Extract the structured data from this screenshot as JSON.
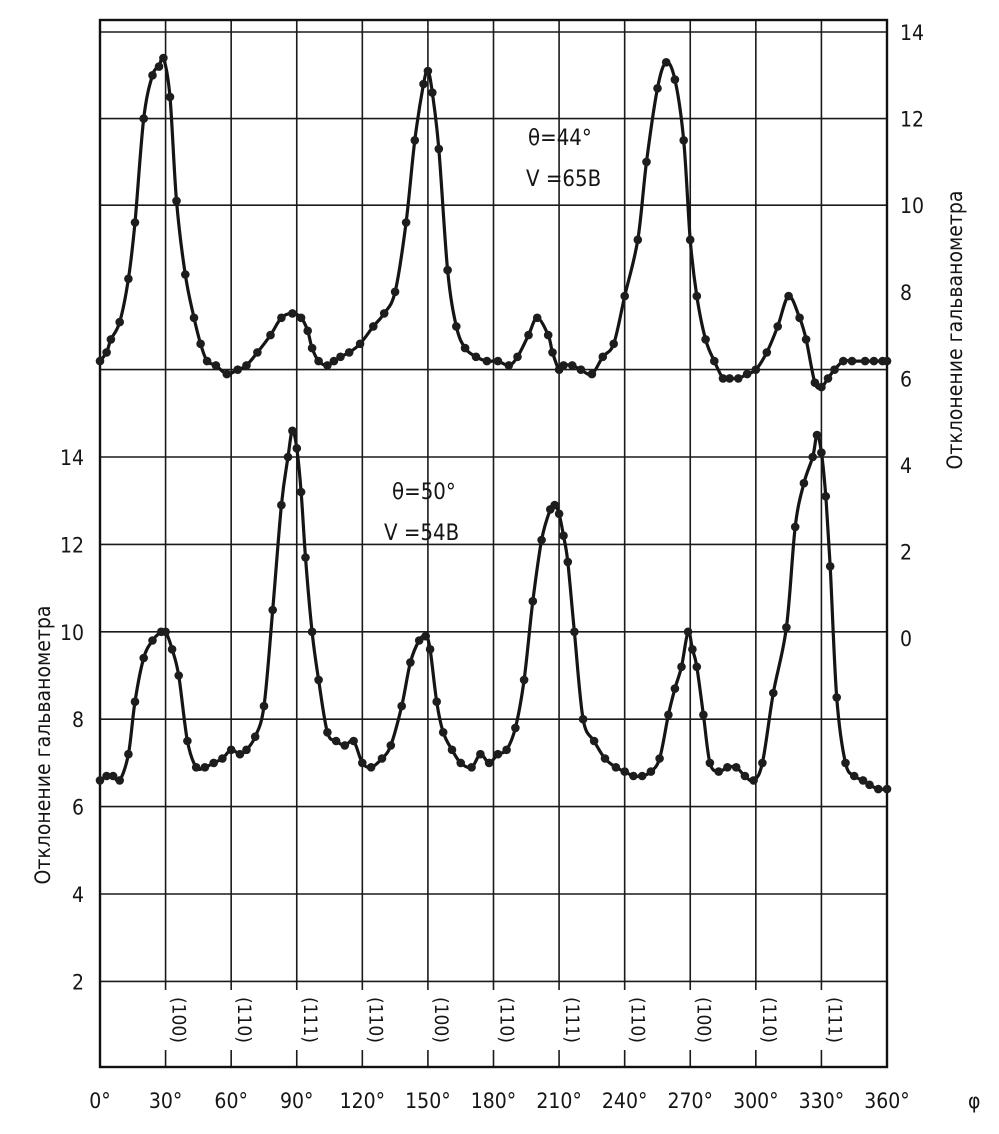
{
  "chart_data": {
    "type": "line",
    "x_label": "φ",
    "x_ticks": [
      "0°",
      "30°",
      "60°",
      "90°",
      "120°",
      "150°",
      "180°",
      "210°",
      "240°",
      "270°",
      "300°",
      "330°",
      "360°"
    ],
    "xlim": [
      0,
      360
    ],
    "left_axis": {
      "label": "Отклонение гальванометра",
      "ticks": [
        "2",
        "4",
        "6",
        "8",
        "10",
        "12",
        "14"
      ],
      "ylim": [
        0,
        16
      ]
    },
    "right_axis": {
      "label": "Отклонение гальванометра",
      "ticks": [
        "0",
        "2",
        "4",
        "6",
        "8",
        "10",
        "12",
        "14"
      ],
      "ylim": [
        -2,
        14
      ]
    },
    "grid": true,
    "plane_labels": [
      "(100)",
      "(110)",
      "(111)",
      "(110)",
      "(100)",
      "(110)",
      "(111)",
      "(110)",
      "(100)",
      "(110)",
      "(111)"
    ],
    "series": [
      {
        "annotation": [
          "θ=44°",
          "V =65B"
        ],
        "axis": "right",
        "x": [
          0,
          3,
          5,
          9,
          13,
          16,
          20,
          24,
          27,
          29,
          32,
          35,
          39,
          43,
          46,
          49,
          53,
          58,
          63,
          67,
          72,
          78,
          83,
          88,
          92,
          95,
          97,
          100,
          104,
          107,
          110,
          114,
          119,
          125,
          130,
          135,
          140,
          144,
          148,
          150,
          152,
          155,
          159,
          163,
          167,
          172,
          177,
          182,
          187,
          191,
          196,
          200,
          205,
          207,
          210,
          212,
          216,
          220,
          225,
          230,
          235,
          240,
          246,
          250,
          255,
          259,
          263,
          267,
          270,
          273,
          277,
          281,
          285,
          288,
          292,
          296,
          300,
          305,
          310,
          315,
          320,
          323,
          327,
          330,
          333,
          336,
          340,
          344,
          350,
          354,
          358,
          360
        ],
        "y": [
          6.4,
          6.6,
          6.9,
          7.3,
          8.3,
          9.6,
          12,
          13,
          13.2,
          13.4,
          12.5,
          10.1,
          8.4,
          7.4,
          6.8,
          6.4,
          6.3,
          6.1,
          6.2,
          6.3,
          6.6,
          7.0,
          7.4,
          7.5,
          7.4,
          7.1,
          6.7,
          6.4,
          6.3,
          6.4,
          6.5,
          6.6,
          6.8,
          7.2,
          7.5,
          8.0,
          9.6,
          11.5,
          12.8,
          13.1,
          12.6,
          11.3,
          8.5,
          7.2,
          6.7,
          6.5,
          6.4,
          6.4,
          6.3,
          6.5,
          7.0,
          7.4,
          7.0,
          6.6,
          6.2,
          6.3,
          6.3,
          6.2,
          6.1,
          6.5,
          6.8,
          7.9,
          9.2,
          11.0,
          12.7,
          13.3,
          12.9,
          11.5,
          9.2,
          7.9,
          6.9,
          6.4,
          6.0,
          6.0,
          6.0,
          6.1,
          6.2,
          6.6,
          7.2,
          7.9,
          7.4,
          6.9,
          5.9,
          5.8,
          6.0,
          6.2,
          6.4,
          6.4,
          6.4,
          6.4,
          6.4,
          6.4
        ]
      },
      {
        "annotation": [
          "θ=50°",
          "V =54B"
        ],
        "axis": "left",
        "x": [
          0,
          3,
          6,
          9,
          13,
          16,
          20,
          24,
          28,
          30,
          33,
          36,
          40,
          44,
          48,
          52,
          56,
          60,
          64,
          67,
          71,
          75,
          79,
          83,
          86,
          88,
          90,
          92,
          94,
          97,
          100,
          104,
          108,
          112,
          116,
          120,
          124,
          129,
          133,
          138,
          142,
          146,
          149,
          151,
          154,
          157,
          161,
          165,
          170,
          174,
          178,
          182,
          186,
          190,
          194,
          198,
          202,
          206,
          208,
          210,
          212,
          214,
          217,
          221,
          226,
          231,
          236,
          240,
          244,
          248,
          252,
          256,
          260,
          263,
          266,
          269,
          271,
          273,
          276,
          279,
          283,
          287,
          291,
          295,
          299,
          303,
          308,
          314,
          318,
          322,
          326,
          328,
          330,
          332,
          334,
          337,
          341,
          345,
          349,
          352,
          356,
          360
        ],
        "y": [
          6.6,
          6.7,
          6.7,
          6.6,
          7.2,
          8.4,
          9.4,
          9.8,
          10.0,
          10.0,
          9.6,
          9.0,
          7.5,
          6.9,
          6.9,
          7.0,
          7.1,
          7.3,
          7.2,
          7.3,
          7.6,
          8.3,
          10.5,
          12.9,
          14.0,
          14.6,
          14.2,
          13.2,
          11.7,
          10.0,
          8.9,
          7.7,
          7.5,
          7.4,
          7.5,
          7.0,
          6.9,
          7.1,
          7.4,
          8.3,
          9.3,
          9.8,
          9.9,
          9.6,
          8.4,
          7.7,
          7.3,
          7.0,
          6.9,
          7.2,
          7.0,
          7.2,
          7.3,
          7.8,
          8.9,
          10.7,
          12.1,
          12.8,
          12.9,
          12.7,
          12.2,
          11.6,
          10.0,
          8.0,
          7.5,
          7.1,
          6.9,
          6.8,
          6.7,
          6.7,
          6.8,
          7.1,
          8.1,
          8.7,
          9.2,
          10.0,
          9.6,
          9.2,
          8.1,
          7.0,
          6.8,
          6.9,
          6.9,
          6.7,
          6.6,
          7.0,
          8.6,
          10.1,
          12.4,
          13.4,
          14.0,
          14.5,
          14.1,
          13.1,
          11.5,
          8.5,
          7.0,
          6.7,
          6.6,
          6.5,
          6.4,
          6.4
        ]
      }
    ]
  }
}
